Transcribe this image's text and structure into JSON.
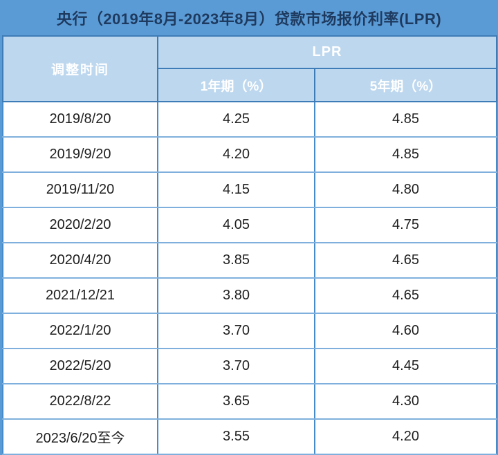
{
  "chart_data": {
    "type": "table",
    "title": "央行（2019年8月-2023年8月）贷款市场报价利率(LPR)",
    "header": {
      "time": "调整时间",
      "group": "LPR",
      "sub": [
        "1年期（%）",
        "5年期（%）"
      ]
    },
    "rows": [
      {
        "date": "2019/8/20",
        "y1": "4.25",
        "y5": "4.85"
      },
      {
        "date": "2019/9/20",
        "y1": "4.20",
        "y5": "4.85"
      },
      {
        "date": "2019/11/20",
        "y1": "4.15",
        "y5": "4.80"
      },
      {
        "date": "2020/2/20",
        "y1": "4.05",
        "y5": "4.75"
      },
      {
        "date": "2020/4/20",
        "y1": "3.85",
        "y5": "4.65"
      },
      {
        "date": "2021/12/21",
        "y1": "3.80",
        "y5": "4.65"
      },
      {
        "date": "2022/1/20",
        "y1": "3.70",
        "y5": "4.60"
      },
      {
        "date": "2022/5/20",
        "y1": "3.70",
        "y5": "4.45"
      },
      {
        "date": "2022/8/22",
        "y1": "3.65",
        "y5": "4.30"
      },
      {
        "date": "2023/6/20至今",
        "y1": "3.55",
        "y5": "4.20"
      }
    ]
  },
  "colors": {
    "background_blue": "#5b9bd5",
    "title_text": "#1e3a5f",
    "header_fill": "#bdd7ee",
    "header_text": "#ffffff",
    "header_border": "#3e7cb8",
    "row_border_horizontal": "#7fb0dd",
    "row_border_vertical": "#468cca",
    "cell_fill": "#ffffff",
    "cell_text": "#1f1f1f"
  }
}
